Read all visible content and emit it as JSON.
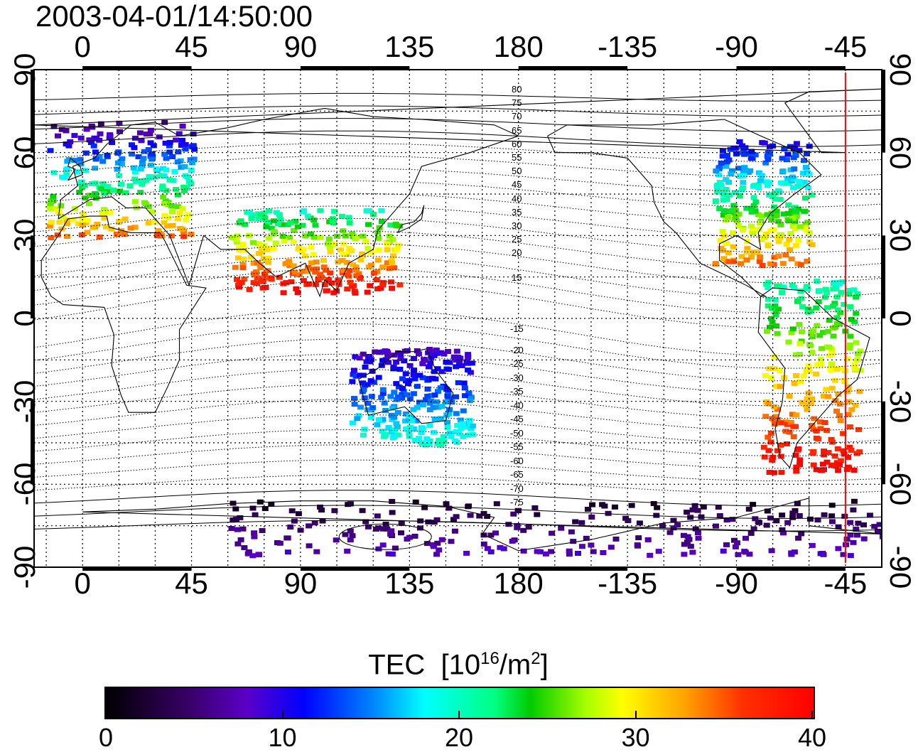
{
  "title": "2003-04-01/14:50:00",
  "axes": {
    "longitude_ticks": [
      "0",
      "45",
      "90",
      "135",
      "180",
      "-135",
      "-90",
      "-45"
    ],
    "latitude_ticks": [
      "90",
      "60",
      "30",
      "0",
      "-30",
      "-60",
      "-90"
    ]
  },
  "contour_labels_north": [
    "80",
    "75",
    "70",
    "65",
    "60",
    "55",
    "50",
    "45",
    "40",
    "35",
    "30",
    "25",
    "20",
    "15"
  ],
  "contour_labels_south": [
    "-15",
    "-20",
    "-25",
    "-30",
    "-35",
    "-40",
    "-45",
    "-50",
    "-55",
    "-60",
    "-65",
    "-70",
    "-75"
  ],
  "colorbar": {
    "title": "TEC",
    "unit_base": "[10",
    "unit_exp": "16",
    "unit_mid": "/m",
    "unit_exp2": "2",
    "unit_end": "]",
    "ticks": [
      "0",
      "10",
      "20",
      "30",
      "40"
    ],
    "range": [
      0,
      40
    ]
  },
  "colors": {
    "meridian_marker": "#ff0000",
    "coastline": "#000000"
  },
  "chart_data": {
    "type": "heatmap",
    "title": "2003-04-01/14:50:00",
    "xlabel": "",
    "ylabel": "",
    "x_range": [
      -20,
      330
    ],
    "y_range": [
      -90,
      90
    ],
    "colorbar_label": "TEC [10^16/m^2]",
    "colorbar_range": [
      0,
      40
    ],
    "marker_longitude": -45,
    "regions": [
      {
        "lon": [
          -15,
          45
        ],
        "lat": [
          30,
          72
        ],
        "tec": [
          5,
          35
        ]
      },
      {
        "lon": [
          -100,
          -60
        ],
        "lat": [
          20,
          65
        ],
        "tec": [
          10,
          35
        ]
      },
      {
        "lon": [
          -80,
          -40
        ],
        "lat": [
          -55,
          15
        ],
        "tec": [
          20,
          40
        ]
      },
      {
        "lon": [
          110,
          160
        ],
        "lat": [
          -45,
          -10
        ],
        "tec": [
          8,
          20
        ]
      },
      {
        "lon": [
          60,
          130
        ],
        "lat": [
          10,
          40
        ],
        "tec": [
          20,
          40
        ]
      },
      {
        "lon": [
          60,
          330
        ],
        "lat": [
          -85,
          -65
        ],
        "tec": [
          2,
          8
        ]
      }
    ]
  }
}
